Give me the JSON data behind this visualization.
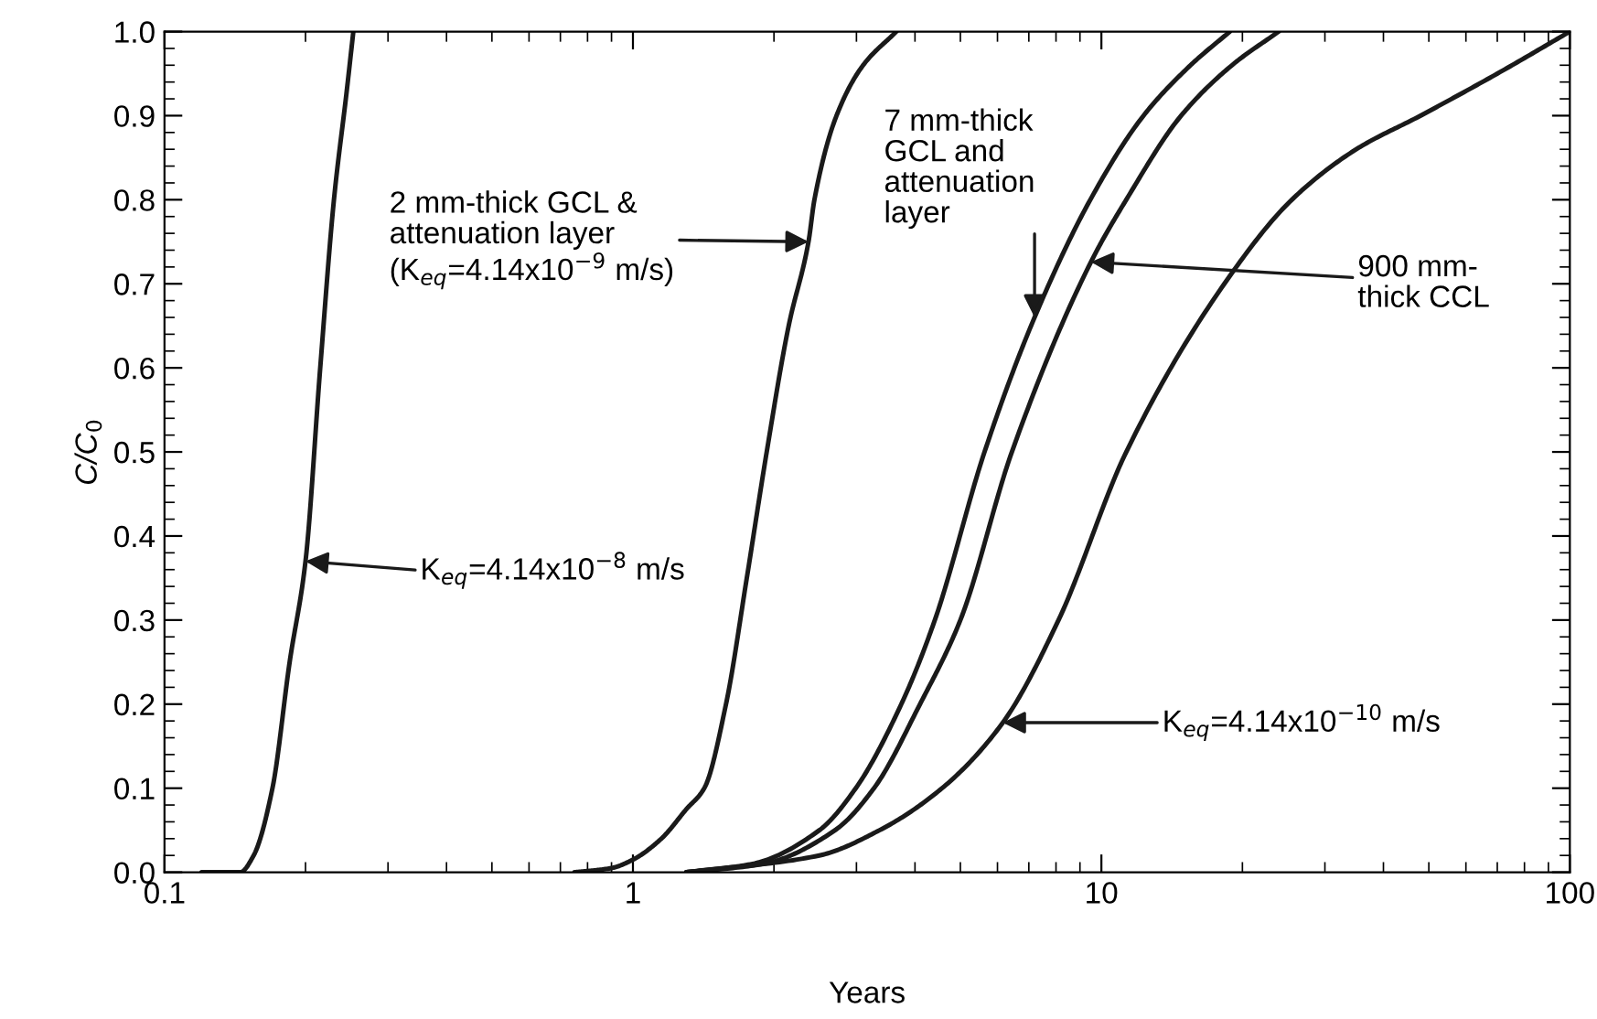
{
  "chart_data": {
    "type": "line",
    "xlabel": "Years",
    "ylabel": "C/C$_{0}$",
    "log": "x",
    "grid": false,
    "legend": false,
    "marker": "none",
    "line_style": "solid",
    "xlim": [
      0.1,
      100
    ],
    "xticks": [
      0.1,
      1,
      10,
      100
    ],
    "ylim": [
      0.0,
      1.0
    ],
    "yticks": [
      {
        "value": 0,
        "label": "0.0"
      },
      0.1,
      0.2,
      0.3,
      0.4,
      0.5,
      0.6,
      0.7,
      0.8,
      0.9,
      {
        "value": 1,
        "label": "1.0"
      }
    ],
    "series": [
      {
        "color": "#1a1a1a",
        "x": [
          0.12,
          0.145,
          0.155,
          0.17,
          0.185,
          0.2,
          0.215,
          0.23,
          0.245,
          0.253
        ],
        "values": [
          0,
          0,
          0.02,
          0.1,
          0.25,
          0.37,
          0.6,
          0.8,
          0.93,
          1.0
        ]
      },
      {
        "color": "#1a1a1a",
        "x": [
          0.75,
          0.9,
          1.0,
          1.15,
          1.3,
          1.42,
          1.58,
          1.75,
          1.93,
          2.15,
          2.37,
          2.44,
          2.72,
          3.1,
          3.65
        ],
        "values": [
          0,
          0.005,
          0.015,
          0.04,
          0.075,
          0.1,
          0.2,
          0.35,
          0.5,
          0.65,
          0.75,
          0.8,
          0.9,
          0.96,
          1.0
        ]
      },
      {
        "color": "#1a1a1a",
        "x": [
          1.3,
          1.8,
          2.5,
          2.99,
          3.74,
          4.41,
          5.63,
          7.2,
          9.47,
          12.3,
          15.5,
          18.8
        ],
        "values": [
          0,
          0.01,
          0.05,
          0.1,
          0.2,
          0.3,
          0.5,
          0.66,
          0.8,
          0.9,
          0.96,
          1.0
        ]
      },
      {
        "color": "#1a1a1a",
        "x": [
          1.3,
          1.9,
          2.7,
          3.27,
          4.1,
          5.0,
          6.44,
          9.5,
          11.3,
          14.8,
          19.0,
          23.9
        ],
        "values": [
          0,
          0.01,
          0.05,
          0.1,
          0.2,
          0.3,
          0.5,
          0.726,
          0.8,
          0.9,
          0.96,
          1.0
        ]
      },
      {
        "color": "#1a1a1a",
        "x": [
          1.3,
          2.5,
          3.36,
          4.57,
          6.16,
          8.1,
          11.3,
          18.3,
          25.5,
          35,
          48,
          70,
          100
        ],
        "values": [
          0,
          0.02,
          0.05,
          0.1,
          0.178,
          0.3,
          0.5,
          0.7,
          0.8,
          0.86,
          0.9,
          0.95,
          1.0
        ]
      }
    ],
    "annotations": [
      "K$_{eq}$=4.14x10$^{−8}$ m/s",
      "2 mm-thick GCL &\nattenuation layer\n(K$_{eq}$=4.14x10$^{−9}$ m/s)",
      {
        "text": "7 mm-thick\nGCL and\nattenuation\nlayer",
        "x": 7.2,
        "y": 0.66
      },
      {
        "text": "900 mm-\nthick CCL",
        "x": 9.5,
        "y": 0.726
      },
      "K$_{eq}$=4.14x10$^{−10}$ m/s"
    ]
  }
}
